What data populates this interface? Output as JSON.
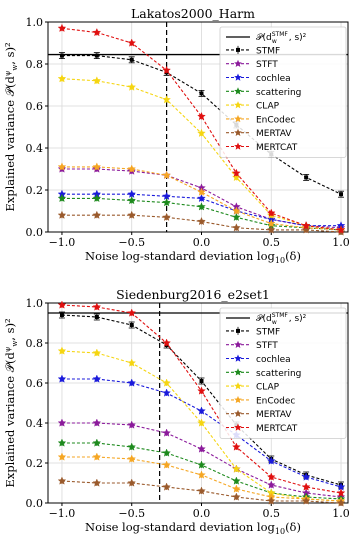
{
  "chart_data": [
    {
      "type": "line",
      "title": "Lakatos2000_Harm",
      "xlabel": "Noise log-standard deviation log10(δ)",
      "ylabel": "Explained variance P(d_w^ψ, s)^2",
      "xlim": [
        -1.1,
        1.05
      ],
      "ylim": [
        0,
        1.0
      ],
      "xticks": [
        "−1.0",
        "−0.5",
        "0.0",
        "0.5",
        "1.0"
      ],
      "yticks": [
        "0.0",
        "0.2",
        "0.4",
        "0.6",
        "0.8",
        "1.0"
      ],
      "x": [
        -1.0,
        -0.75,
        -0.5,
        -0.25,
        0.0,
        0.25,
        0.5,
        0.75,
        1.0
      ],
      "hline": {
        "label": "P(d_w^STMF, s)^2",
        "y": 0.845,
        "color": "#000000"
      },
      "vline": {
        "x": -0.25
      },
      "grid": true,
      "legend_position": "right",
      "series": [
        {
          "name": "STMF",
          "color": "#000000",
          "values": [
            0.84,
            0.84,
            0.82,
            0.76,
            0.66,
            0.51,
            0.37,
            0.26,
            0.18
          ]
        },
        {
          "name": "STFT",
          "color": "#8b1a9b",
          "values": [
            0.3,
            0.3,
            0.29,
            0.27,
            0.21,
            0.12,
            0.06,
            0.03,
            0.02
          ]
        },
        {
          "name": "cochlea",
          "color": "#1a1adb",
          "values": [
            0.18,
            0.18,
            0.18,
            0.17,
            0.16,
            0.1,
            0.06,
            0.03,
            0.03
          ]
        },
        {
          "name": "scattering",
          "color": "#1d8a1d",
          "values": [
            0.16,
            0.16,
            0.15,
            0.14,
            0.12,
            0.07,
            0.03,
            0.02,
            0.01
          ]
        },
        {
          "name": "CLAP",
          "color": "#f5d511",
          "values": [
            0.73,
            0.72,
            0.69,
            0.63,
            0.47,
            0.26,
            0.08,
            0.03,
            0.01
          ]
        },
        {
          "name": "EnCodec",
          "color": "#f5a623",
          "values": [
            0.31,
            0.31,
            0.3,
            0.27,
            0.19,
            0.1,
            0.04,
            0.02,
            0.01
          ]
        },
        {
          "name": "MERTAV",
          "color": "#9a5a2c",
          "values": [
            0.08,
            0.08,
            0.08,
            0.07,
            0.05,
            0.02,
            0.01,
            0.01,
            0.0
          ]
        },
        {
          "name": "MERTCAT",
          "color": "#e01010",
          "values": [
            0.97,
            0.95,
            0.9,
            0.77,
            0.55,
            0.28,
            0.09,
            0.03,
            0.01
          ]
        }
      ]
    },
    {
      "type": "line",
      "title": "Siedenburg2016_e2set1",
      "xlabel": "Noise log-standard deviation log10(δ)",
      "ylabel": "Explained variance P(d_w^ψ, s)^2",
      "xlim": [
        -1.1,
        1.05
      ],
      "ylim": [
        0,
        1.0
      ],
      "xticks": [
        "−1.0",
        "−0.5",
        "0.0",
        "0.5",
        "1.0"
      ],
      "yticks": [
        "0.0",
        "0.2",
        "0.4",
        "0.6",
        "0.8",
        "1.0"
      ],
      "x": [
        -1.0,
        -0.75,
        -0.5,
        -0.25,
        0.0,
        0.25,
        0.5,
        0.75,
        1.0
      ],
      "hline": {
        "label": "P(d_w^STMF, s)^2",
        "y": 0.95,
        "color": "#000000"
      },
      "vline": {
        "x": -0.3
      },
      "grid": true,
      "legend_position": "right",
      "series": [
        {
          "name": "STMF",
          "color": "#000000",
          "values": [
            0.94,
            0.93,
            0.89,
            0.79,
            0.61,
            0.39,
            0.22,
            0.14,
            0.09
          ]
        },
        {
          "name": "STFT",
          "color": "#8b1a9b",
          "values": [
            0.4,
            0.4,
            0.39,
            0.35,
            0.27,
            0.17,
            0.09,
            0.05,
            0.03
          ]
        },
        {
          "name": "cochlea",
          "color": "#1a1adb",
          "values": [
            0.62,
            0.62,
            0.6,
            0.55,
            0.46,
            0.34,
            0.21,
            0.13,
            0.08
          ]
        },
        {
          "name": "scattering",
          "color": "#1d8a1d",
          "values": [
            0.3,
            0.3,
            0.28,
            0.25,
            0.19,
            0.11,
            0.05,
            0.03,
            0.02
          ]
        },
        {
          "name": "CLAP",
          "color": "#f5d511",
          "values": [
            0.76,
            0.75,
            0.7,
            0.6,
            0.4,
            0.17,
            0.05,
            0.02,
            0.01
          ]
        },
        {
          "name": "EnCodec",
          "color": "#f5a623",
          "values": [
            0.23,
            0.23,
            0.22,
            0.19,
            0.14,
            0.07,
            0.03,
            0.02,
            0.01
          ]
        },
        {
          "name": "MERTAV",
          "color": "#9a5a2c",
          "values": [
            0.11,
            0.1,
            0.1,
            0.08,
            0.06,
            0.03,
            0.01,
            0.01,
            0.0
          ]
        },
        {
          "name": "MERTCAT",
          "color": "#e01010",
          "values": [
            0.99,
            0.98,
            0.95,
            0.8,
            0.56,
            0.28,
            0.13,
            0.08,
            0.05
          ]
        }
      ]
    }
  ]
}
